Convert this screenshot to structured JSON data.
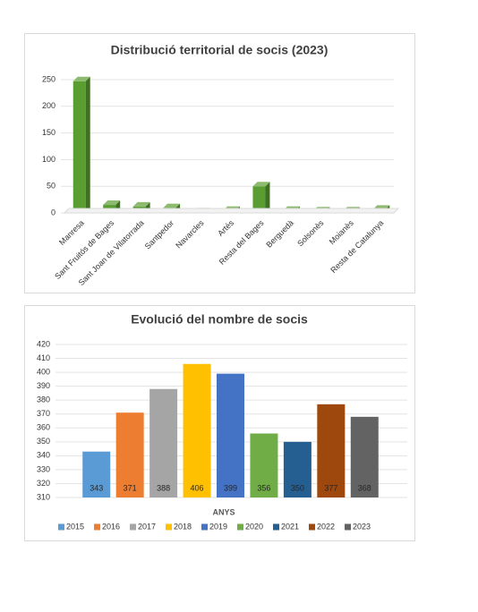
{
  "chart_data": [
    {
      "type": "bar3d",
      "title": "Distribució territorial de socis (2023)",
      "categories": [
        "Manresa",
        "Sant Fruitós de Bages",
        "Sant Joan de Vilatorrada",
        "Santpedor",
        "Navarcles",
        "Artés",
        "Resta del Bages",
        "Berguedà",
        "Solsonès",
        "Moianès",
        "Resta de Catalunya"
      ],
      "values": [
        247,
        15,
        12,
        9,
        1,
        4,
        50,
        4,
        3,
        3,
        6
      ],
      "color": "#5a9e32",
      "ylim": [
        0,
        250
      ],
      "yticks": [
        0,
        50,
        100,
        150,
        200,
        250
      ],
      "grid": true
    },
    {
      "type": "bar",
      "title": "Evolució del nombre de socis",
      "x_label": "ANYS",
      "categories": [
        "2015",
        "2016",
        "2017",
        "2018",
        "2019",
        "2020",
        "2021",
        "2022",
        "2023"
      ],
      "values": [
        343,
        371,
        388,
        406,
        399,
        356,
        350,
        377,
        368
      ],
      "colors": [
        "#5b9bd5",
        "#ed7d31",
        "#a5a5a5",
        "#ffc000",
        "#4472c4",
        "#70ad47",
        "#255e91",
        "#9e480e",
        "#636363"
      ],
      "ylim": [
        310,
        420
      ],
      "yticks": [
        310,
        320,
        330,
        340,
        350,
        360,
        370,
        380,
        390,
        400,
        410,
        420
      ],
      "grid": true,
      "legend": "bottom"
    }
  ]
}
